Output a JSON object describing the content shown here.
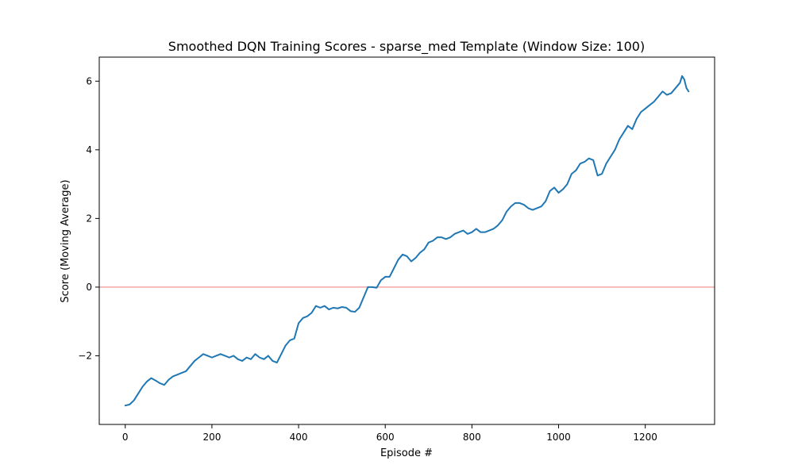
{
  "chart_data": {
    "type": "line",
    "title": "Smoothed DQN Training Scores - sparse_med Template (Window Size: 100)",
    "xlabel": "Episode #",
    "ylabel": "Score (Moving Average)",
    "xlim": [
      -60,
      1360
    ],
    "ylim": [
      -4.0,
      6.7
    ],
    "xticks": [
      0,
      200,
      400,
      600,
      800,
      1000,
      1200
    ],
    "yticks": [
      -2,
      0,
      2,
      4,
      6
    ],
    "xtick_labels": [
      "0",
      "200",
      "400",
      "600",
      "800",
      "1000",
      "1200"
    ],
    "ytick_labels": [
      "−2",
      "0",
      "2",
      "4",
      "6"
    ],
    "grid": false,
    "reference_line": {
      "y": 0,
      "color": "#f4a6a6"
    },
    "series": [
      {
        "color": "#1f77b4",
        "x": [
          0,
          10,
          20,
          30,
          40,
          50,
          60,
          70,
          80,
          90,
          100,
          110,
          120,
          130,
          140,
          150,
          160,
          170,
          180,
          190,
          200,
          210,
          220,
          230,
          240,
          250,
          260,
          270,
          280,
          290,
          300,
          310,
          320,
          330,
          340,
          350,
          360,
          370,
          380,
          390,
          400,
          410,
          420,
          430,
          440,
          450,
          460,
          470,
          480,
          490,
          500,
          510,
          520,
          530,
          540,
          550,
          560,
          570,
          580,
          590,
          600,
          610,
          620,
          630,
          640,
          650,
          660,
          670,
          680,
          690,
          700,
          710,
          720,
          730,
          740,
          750,
          760,
          770,
          780,
          790,
          800,
          810,
          820,
          830,
          840,
          850,
          860,
          870,
          880,
          890,
          900,
          910,
          920,
          930,
          940,
          950,
          960,
          970,
          980,
          990,
          1000,
          1010,
          1020,
          1030,
          1040,
          1050,
          1060,
          1070,
          1080,
          1090,
          1100,
          1110,
          1120,
          1130,
          1140,
          1150,
          1160,
          1170,
          1180,
          1190,
          1200,
          1210,
          1220,
          1230,
          1240,
          1250,
          1260,
          1270,
          1280,
          1285,
          1290,
          1295,
          1300
        ],
        "y": [
          -3.45,
          -3.42,
          -3.3,
          -3.1,
          -2.9,
          -2.75,
          -2.65,
          -2.72,
          -2.8,
          -2.85,
          -2.7,
          -2.6,
          -2.55,
          -2.5,
          -2.45,
          -2.3,
          -2.15,
          -2.05,
          -1.95,
          -2.0,
          -2.05,
          -2.0,
          -1.95,
          -2.0,
          -2.05,
          -2.0,
          -2.1,
          -2.15,
          -2.05,
          -2.1,
          -1.95,
          -2.05,
          -2.1,
          -2.0,
          -2.15,
          -2.2,
          -1.95,
          -1.7,
          -1.55,
          -1.5,
          -1.05,
          -0.9,
          -0.85,
          -0.75,
          -0.55,
          -0.6,
          -0.55,
          -0.65,
          -0.6,
          -0.62,
          -0.58,
          -0.6,
          -0.7,
          -0.72,
          -0.6,
          -0.3,
          0.0,
          0.0,
          -0.02,
          0.2,
          0.3,
          0.3,
          0.55,
          0.8,
          0.95,
          0.9,
          0.75,
          0.85,
          1.0,
          1.1,
          1.3,
          1.35,
          1.45,
          1.45,
          1.4,
          1.45,
          1.55,
          1.6,
          1.65,
          1.55,
          1.6,
          1.7,
          1.6,
          1.6,
          1.65,
          1.7,
          1.8,
          1.95,
          2.2,
          2.35,
          2.45,
          2.45,
          2.4,
          2.3,
          2.25,
          2.3,
          2.35,
          2.5,
          2.8,
          2.9,
          2.75,
          2.85,
          3.0,
          3.3,
          3.4,
          3.6,
          3.65,
          3.75,
          3.7,
          3.25,
          3.3,
          3.6,
          3.8,
          4.0,
          4.3,
          4.5,
          4.7,
          4.6,
          4.9,
          5.1,
          5.2,
          5.3,
          5.4,
          5.55,
          5.7,
          5.6,
          5.65,
          5.8,
          5.95,
          6.15,
          6.05,
          5.8,
          5.7
        ]
      }
    ]
  }
}
